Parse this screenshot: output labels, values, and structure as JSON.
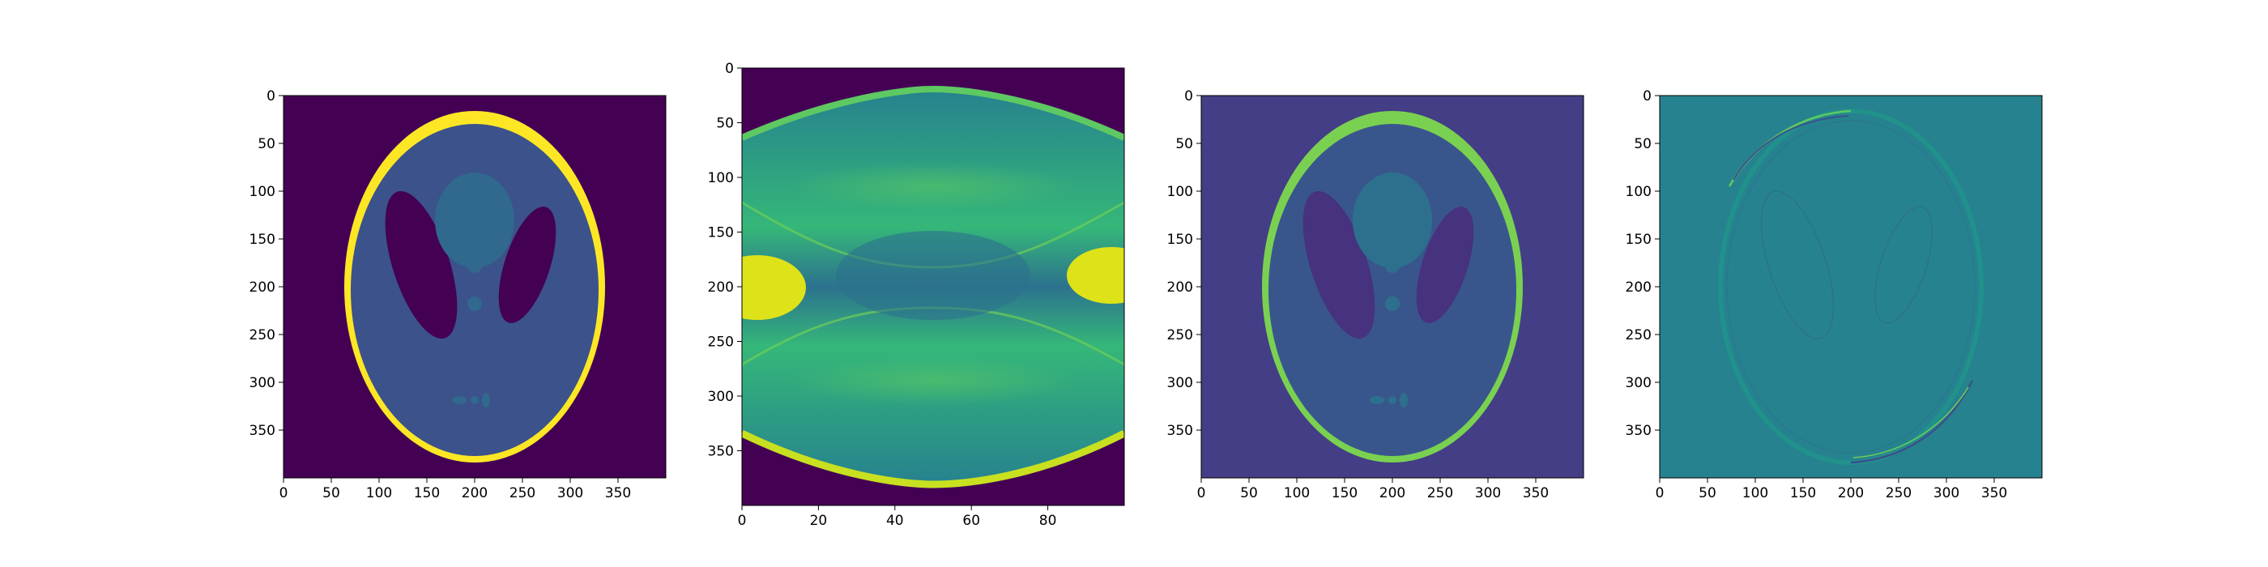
{
  "chart_data": [
    {
      "type": "heatmap",
      "content": "shepp-logan phantom",
      "colormap": "viridis",
      "xlim": [
        0,
        400
      ],
      "ylim": [
        400,
        0
      ],
      "xticks": [
        0,
        50,
        100,
        150,
        200,
        250,
        300,
        350
      ],
      "yticks": [
        0,
        50,
        100,
        150,
        200,
        250,
        300,
        350
      ]
    },
    {
      "type": "heatmap",
      "content": "sinogram",
      "colormap": "viridis",
      "xlim": [
        0,
        100
      ],
      "ylim": [
        400,
        0
      ],
      "xticks": [
        0,
        20,
        40,
        60,
        80
      ],
      "yticks": [
        0,
        50,
        100,
        150,
        200,
        250,
        300,
        350
      ]
    },
    {
      "type": "heatmap",
      "content": "reconstruction",
      "colormap": "viridis",
      "xlim": [
        0,
        400
      ],
      "ylim": [
        400,
        0
      ],
      "xticks": [
        0,
        50,
        100,
        150,
        200,
        250,
        300,
        350
      ],
      "yticks": [
        0,
        50,
        100,
        150,
        200,
        250,
        300,
        350
      ]
    },
    {
      "type": "heatmap",
      "content": "reconstruction error",
      "colormap": "viridis",
      "xlim": [
        0,
        400
      ],
      "ylim": [
        400,
        0
      ],
      "xticks": [
        0,
        50,
        100,
        150,
        200,
        250,
        300,
        350
      ],
      "yticks": [
        0,
        50,
        100,
        150,
        200,
        250,
        300,
        350
      ]
    }
  ]
}
